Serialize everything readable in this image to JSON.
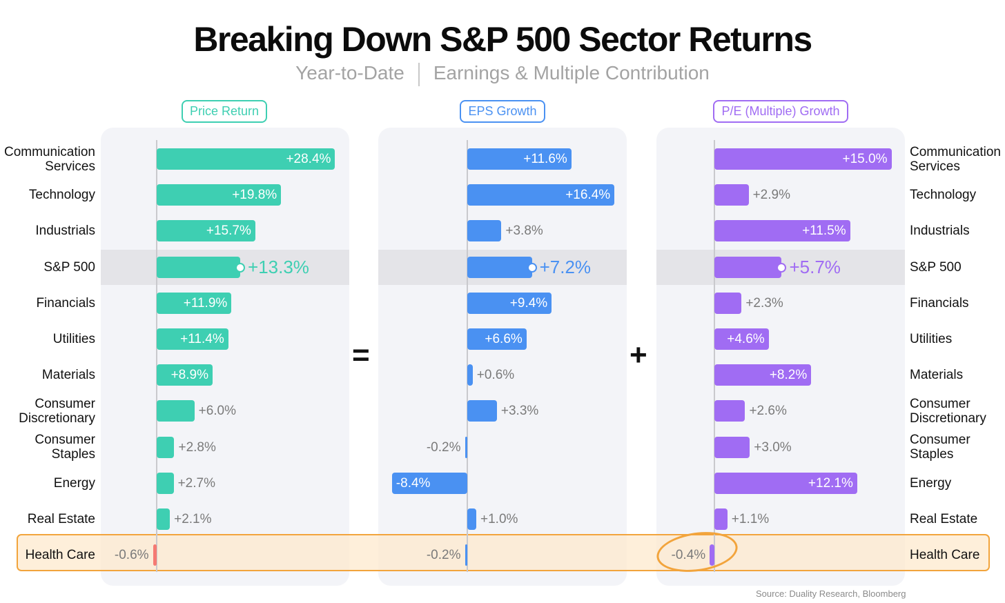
{
  "title": "Breaking Down S&P 500 Sector Returns",
  "subtitle_left": "Year-to-Date",
  "subtitle_right": "Earnings & Multiple Contribution",
  "operators": {
    "equals": "=",
    "plus": "+"
  },
  "source": "Source: Duality Research, Bloomberg",
  "colors": {
    "price": "#3ecfb2",
    "eps": "#4a91f2",
    "pe": "#a06cf3",
    "negative": "#f57a73",
    "highlight": "#f2a43c"
  },
  "chart_data": {
    "type": "bar",
    "orientation": "horizontal",
    "categories": [
      "Communication Services",
      "Technology",
      "Industrials",
      "S&P 500",
      "Financials",
      "Utilities",
      "Materials",
      "Consumer Discretionary",
      "Consumer Staples",
      "Energy",
      "Real Estate",
      "Health Care"
    ],
    "category_lines": [
      [
        "Communication",
        "Services"
      ],
      [
        "Technology"
      ],
      [
        "Industrials"
      ],
      [
        "S&P 500"
      ],
      [
        "Financials"
      ],
      [
        "Utilities"
      ],
      [
        "Materials"
      ],
      [
        "Consumer",
        "Discretionary"
      ],
      [
        "Consumer",
        "Staples"
      ],
      [
        "Energy"
      ],
      [
        "Real Estate"
      ],
      [
        "Health Care"
      ]
    ],
    "highlighted_category": "S&P 500",
    "callout_category": "Health Care",
    "unit": "%",
    "series": [
      {
        "name": "Price Return",
        "color": "#3ecfb2",
        "values": [
          28.4,
          19.8,
          15.7,
          13.3,
          11.9,
          11.4,
          8.9,
          6.0,
          2.8,
          2.7,
          2.1,
          -0.6
        ],
        "labels": [
          "+28.4%",
          "+19.8%",
          "+15.7%",
          "+13.3%",
          "+11.9%",
          "+11.4%",
          "+8.9%",
          "+6.0%",
          "+2.8%",
          "+2.7%",
          "+2.1%",
          "-0.6%"
        ]
      },
      {
        "name": "EPS Growth",
        "color": "#4a91f2",
        "values": [
          11.6,
          16.4,
          3.8,
          7.2,
          9.4,
          6.6,
          0.6,
          3.3,
          -0.2,
          -8.4,
          1.0,
          -0.2
        ],
        "labels": [
          "+11.6%",
          "+16.4%",
          "+3.8%",
          "+7.2%",
          "+9.4%",
          "+6.6%",
          "+0.6%",
          "+3.3%",
          "-0.2%",
          "-8.4%",
          "+1.0%",
          "-0.2%"
        ]
      },
      {
        "name": "P/E (Multiple) Growth",
        "color": "#a06cf3",
        "values": [
          15.0,
          2.9,
          11.5,
          5.7,
          2.3,
          4.6,
          8.2,
          2.6,
          3.0,
          12.1,
          1.1,
          -0.4
        ],
        "labels": [
          "+15.0%",
          "+2.9%",
          "+11.5%",
          "+5.7%",
          "+2.3%",
          "+4.6%",
          "+8.2%",
          "+2.6%",
          "+3.0%",
          "+12.1%",
          "+1.1%",
          "-0.4%"
        ]
      }
    ]
  }
}
